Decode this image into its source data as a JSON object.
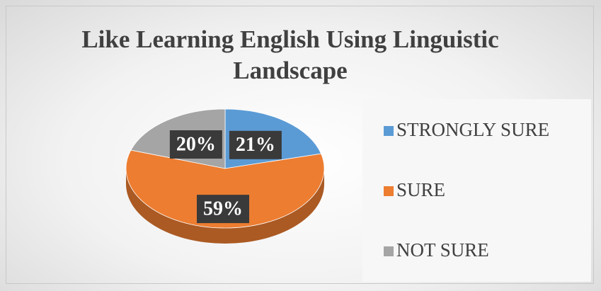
{
  "chart_data": {
    "type": "pie",
    "title": "Like Learning English Using Linguistic Landscape",
    "categories": [
      "STRONGLY SURE",
      "SURE",
      "NOT SURE"
    ],
    "values": [
      21,
      59,
      20
    ],
    "value_labels": [
      "21%",
      "59%",
      "20%"
    ],
    "colors": [
      "#5b9bd5",
      "#ed7d31",
      "#a5a5a5"
    ],
    "legend": "right"
  }
}
